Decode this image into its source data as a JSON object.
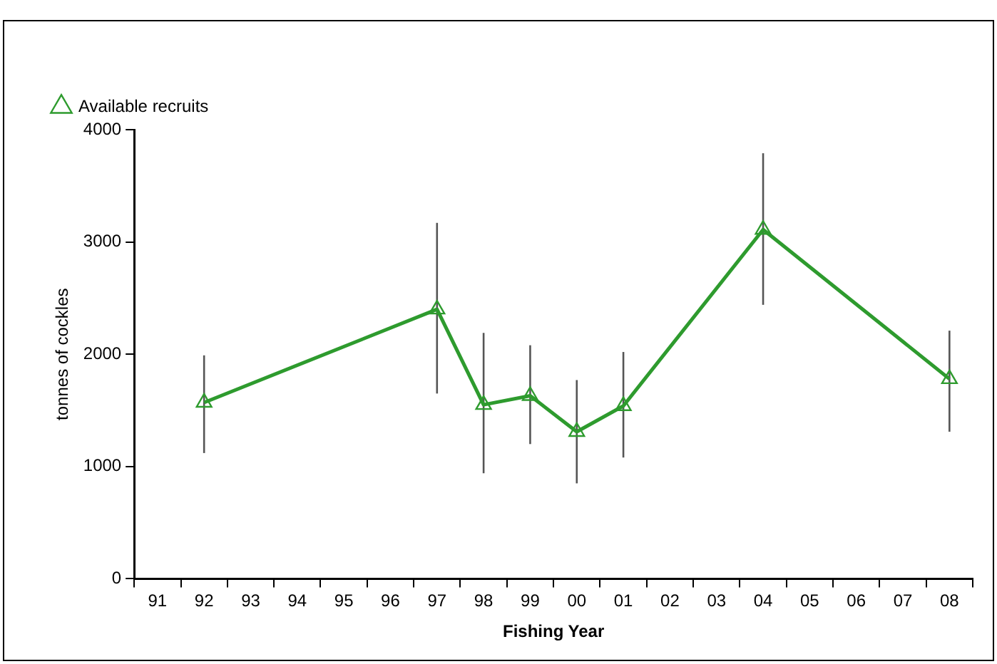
{
  "chart_data": {
    "type": "line",
    "xlabel": "Fishing Year",
    "ylabel": "tonnes of cockles",
    "categories": [
      "91",
      "92",
      "93",
      "94",
      "95",
      "96",
      "97",
      "98",
      "99",
      "00",
      "01",
      "02",
      "03",
      "04",
      "05",
      "06",
      "07",
      "08"
    ],
    "series": [
      {
        "name": "Available recruits",
        "color": "#2e9b2e",
        "values": [
          null,
          1570,
          null,
          null,
          null,
          null,
          2400,
          1550,
          1630,
          1310,
          1540,
          null,
          null,
          3110,
          null,
          null,
          null,
          1780
        ],
        "errors": [
          null,
          [
            1120,
            1990
          ],
          null,
          null,
          null,
          null,
          [
            1650,
            3170
          ],
          [
            940,
            2190
          ],
          [
            1200,
            2080
          ],
          [
            850,
            1770
          ],
          [
            1080,
            2020
          ],
          null,
          null,
          [
            2440,
            3790
          ],
          null,
          null,
          null,
          [
            1310,
            2210
          ]
        ]
      }
    ],
    "ylim": [
      0,
      4000
    ],
    "yticks": [
      0,
      1000,
      2000,
      3000,
      4000
    ],
    "marker": "triangle",
    "line_style": "solid",
    "legend": "top left"
  }
}
